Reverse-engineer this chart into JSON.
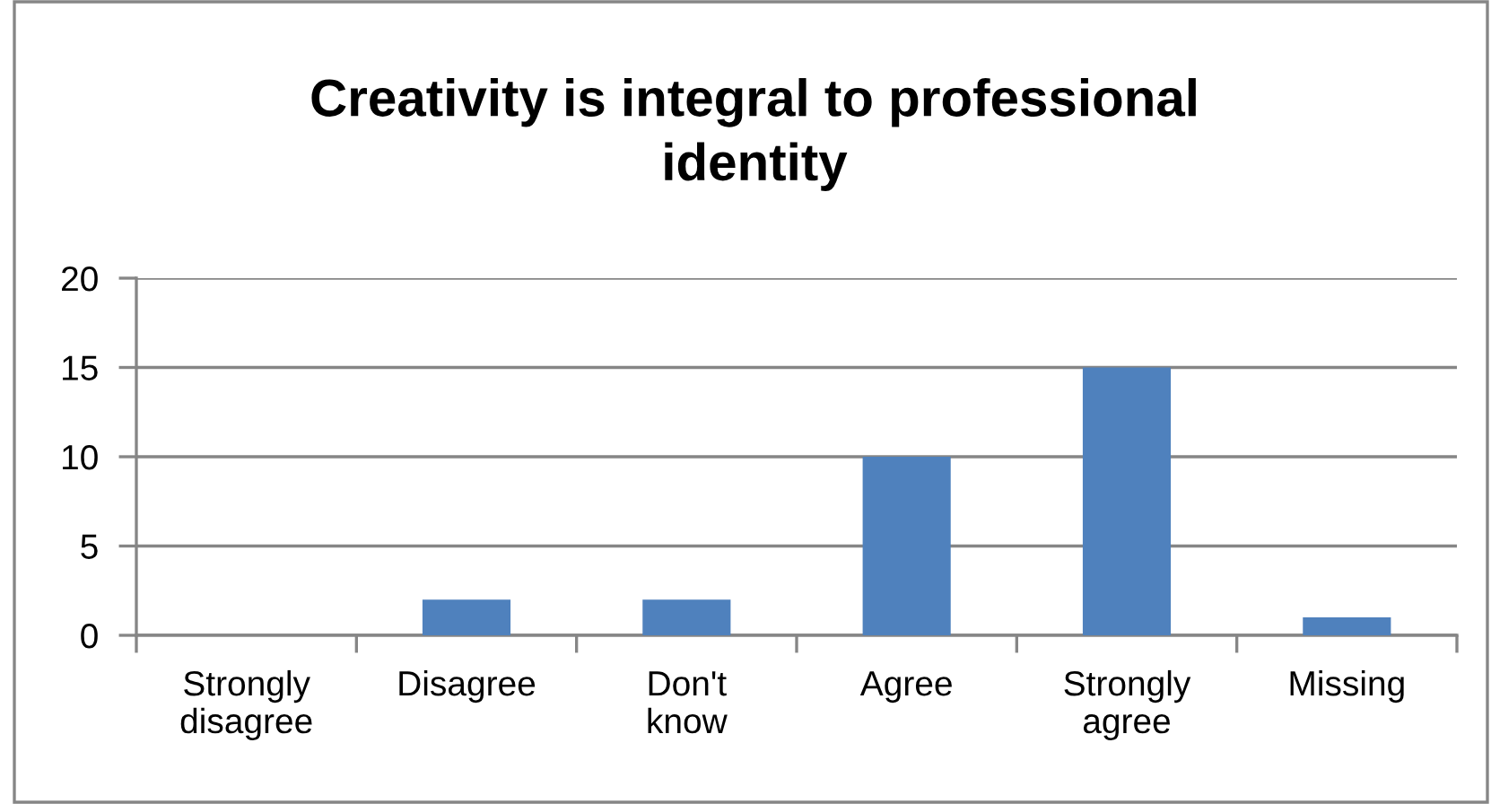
{
  "chart_data": {
    "type": "bar",
    "title": "Creativity is integral to professional identity",
    "categories": [
      "Strongly disagree",
      "Disagree",
      "Don't know",
      "Agree",
      "Strongly agree",
      "Missing"
    ],
    "values": [
      0,
      2,
      2,
      10,
      15,
      1
    ],
    "color": "#4f81bd",
    "ylim": [
      0,
      20
    ],
    "yticks": [
      0,
      5,
      10,
      15,
      20
    ],
    "grid": "y"
  }
}
